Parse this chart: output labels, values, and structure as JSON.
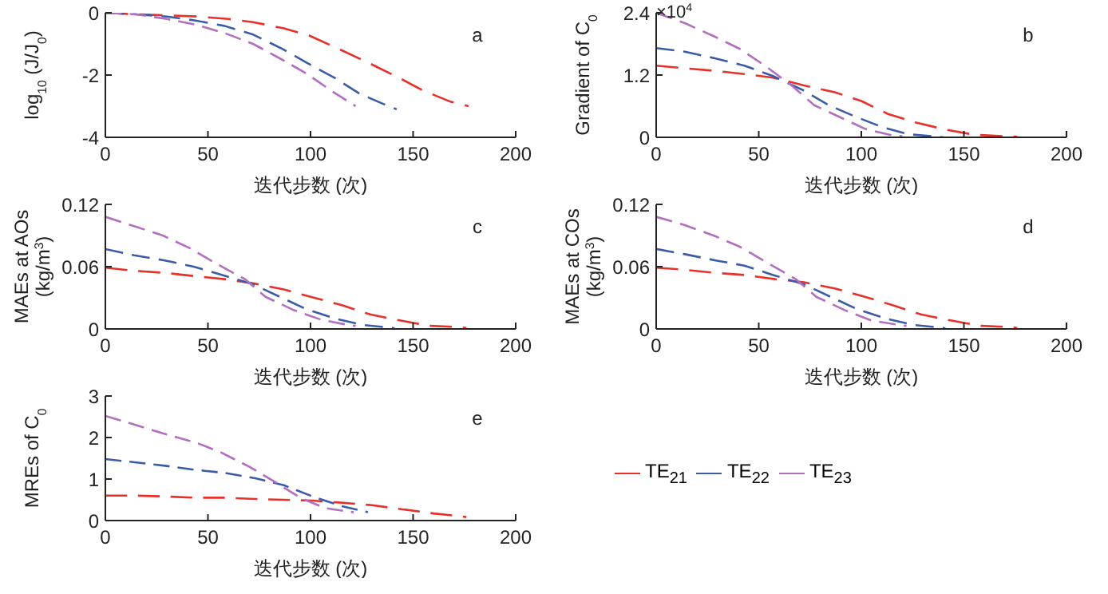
{
  "chart_data": [
    {
      "type": "line",
      "ylabel": "log$_{10}$ (J/J$_{0}$)",
      "xlabel": "迭代步数 (次)",
      "xlim": [
        0,
        200
      ],
      "xticks": [
        0,
        50,
        100,
        150,
        200
      ],
      "ylim": [
        -4,
        0
      ],
      "yticks": [
        -4,
        -2,
        0
      ],
      "line_style": "dashed",
      "legend": false,
      "annotations": [
        "a"
      ],
      "series": [
        {
          "color": "#e8302a",
          "x": [
            0,
            15,
            30,
            45,
            60,
            72,
            87,
            100,
            115,
            128,
            142,
            155,
            168,
            177
          ],
          "values": [
            0,
            -0.05,
            -0.08,
            -0.12,
            -0.2,
            -0.3,
            -0.5,
            -0.75,
            -1.2,
            -1.6,
            -2.05,
            -2.5,
            -2.85,
            -3.0
          ]
        },
        {
          "color": "#3a5ca8",
          "x": [
            0,
            15,
            30,
            44,
            58,
            72,
            86,
            98,
            112,
            124,
            138,
            142
          ],
          "values": [
            0,
            -0.05,
            -0.12,
            -0.25,
            -0.42,
            -0.7,
            -1.15,
            -1.6,
            -2.1,
            -2.6,
            -3.0,
            -3.1
          ]
        },
        {
          "color": "#b26fbf",
          "x": [
            0,
            15,
            30,
            44,
            58,
            72,
            86,
            98,
            110,
            122
          ],
          "values": [
            0,
            -0.05,
            -0.2,
            -0.38,
            -0.65,
            -1.0,
            -1.5,
            -1.95,
            -2.5,
            -3.0
          ]
        }
      ]
    },
    {
      "type": "line",
      "ylabel": "Gradient of C$_{0}$",
      "xlabel": "迭代步数 (次)",
      "xlim": [
        0,
        200
      ],
      "xticks": [
        0,
        50,
        100,
        150,
        200
      ],
      "ylim": [
        0,
        2.4
      ],
      "yticks": [
        0,
        1.2,
        2.4
      ],
      "line_style": "dashed",
      "legend": false,
      "annotations": [
        "×10$^{4}$",
        "b"
      ],
      "series": [
        {
          "color": "#e8302a",
          "x": [
            0,
            14,
            29,
            43,
            57,
            72,
            87,
            100,
            113,
            127,
            141,
            155,
            170,
            176
          ],
          "values": [
            1.38,
            1.33,
            1.28,
            1.22,
            1.15,
            1.0,
            0.87,
            0.7,
            0.45,
            0.28,
            0.15,
            0.05,
            0.02,
            0.01
          ]
        },
        {
          "color": "#3a5ca8",
          "x": [
            0,
            14,
            29,
            43,
            57,
            71,
            84,
            97,
            110,
            123,
            138,
            140
          ],
          "values": [
            1.72,
            1.65,
            1.52,
            1.38,
            1.18,
            0.92,
            0.62,
            0.4,
            0.2,
            0.06,
            0.01,
            0
          ]
        },
        {
          "color": "#b26fbf",
          "x": [
            0,
            14,
            28,
            41,
            53,
            66,
            77,
            90,
            102,
            115,
            120
          ],
          "values": [
            2.4,
            2.2,
            1.95,
            1.7,
            1.38,
            1.0,
            0.62,
            0.38,
            0.16,
            0.04,
            0.02
          ]
        }
      ]
    },
    {
      "type": "line",
      "ylabel": "MAEs at AOs\n(kg/m$^{3}$)",
      "xlabel": "迭代步数 (次)",
      "xlim": [
        0,
        200
      ],
      "xticks": [
        0,
        50,
        100,
        150,
        200
      ],
      "ylim": [
        0,
        0.12
      ],
      "yticks": [
        0,
        0.06,
        0.12
      ],
      "line_style": "dashed",
      "legend": false,
      "annotations": [
        "c"
      ],
      "series": [
        {
          "color": "#e8302a",
          "x": [
            0,
            14,
            29,
            43,
            58,
            72,
            87,
            100,
            115,
            129,
            144,
            158,
            171,
            176
          ],
          "values": [
            0.059,
            0.056,
            0.054,
            0.051,
            0.048,
            0.044,
            0.038,
            0.031,
            0.023,
            0.014,
            0.008,
            0.003,
            0.002,
            0.001
          ]
        },
        {
          "color": "#3a5ca8",
          "x": [
            0,
            14,
            29,
            43,
            57,
            72,
            85,
            98,
            112,
            125,
            140,
            141
          ],
          "values": [
            0.077,
            0.071,
            0.066,
            0.06,
            0.052,
            0.043,
            0.031,
            0.019,
            0.01,
            0.004,
            0.001,
            0
          ]
        },
        {
          "color": "#b26fbf",
          "x": [
            0,
            14,
            28,
            41,
            54,
            68,
            78,
            92,
            105,
            118,
            122
          ],
          "values": [
            0.108,
            0.099,
            0.09,
            0.078,
            0.063,
            0.048,
            0.031,
            0.018,
            0.009,
            0.004,
            0.003
          ]
        }
      ]
    },
    {
      "type": "line",
      "ylabel": "MAEs at COs\n(kg/m$^{3}$)",
      "xlabel": "迭代步数 (次)",
      "xlim": [
        0,
        200
      ],
      "xticks": [
        0,
        50,
        100,
        150,
        200
      ],
      "ylim": [
        0,
        0.12
      ],
      "yticks": [
        0,
        0.06,
        0.12
      ],
      "line_style": "dashed",
      "legend": false,
      "annotations": [
        "d"
      ],
      "series": [
        {
          "color": "#e8302a",
          "x": [
            0,
            14,
            29,
            43,
            58,
            72,
            87,
            100,
            115,
            129,
            144,
            158,
            171,
            176
          ],
          "values": [
            0.059,
            0.057,
            0.054,
            0.052,
            0.048,
            0.045,
            0.039,
            0.032,
            0.023,
            0.014,
            0.008,
            0.003,
            0.002,
            0.001
          ]
        },
        {
          "color": "#3a5ca8",
          "x": [
            0,
            14,
            29,
            43,
            57,
            72,
            85,
            98,
            112,
            125,
            140,
            141
          ],
          "values": [
            0.077,
            0.072,
            0.066,
            0.061,
            0.052,
            0.043,
            0.031,
            0.019,
            0.01,
            0.004,
            0.001,
            0
          ]
        },
        {
          "color": "#b26fbf",
          "x": [
            0,
            14,
            28,
            41,
            54,
            68,
            78,
            92,
            105,
            118,
            122
          ],
          "values": [
            0.108,
            0.1,
            0.09,
            0.079,
            0.064,
            0.048,
            0.031,
            0.018,
            0.008,
            0.004,
            0.003
          ]
        }
      ]
    },
    {
      "type": "line",
      "ylabel": "MREs of C$_{0}$",
      "xlabel": "迭代步数 (次)",
      "xlim": [
        0,
        200
      ],
      "xticks": [
        0,
        50,
        100,
        150,
        200
      ],
      "ylim": [
        0,
        3
      ],
      "yticks": [
        0,
        1,
        2,
        3
      ],
      "line_style": "dashed",
      "legend": "right",
      "annotations": [
        "e"
      ],
      "series": [
        {
          "name": "TE$_{21}$",
          "color": "#e8302a",
          "x": [
            0,
            15,
            29,
            44,
            58,
            73,
            87,
            101,
            115,
            130,
            145,
            160,
            174,
            176
          ],
          "values": [
            0.6,
            0.6,
            0.58,
            0.55,
            0.55,
            0.52,
            0.5,
            0.48,
            0.43,
            0.37,
            0.27,
            0.17,
            0.1,
            0.08
          ]
        },
        {
          "name": "TE$_{22}$",
          "color": "#3a5ca8",
          "x": [
            0,
            15,
            29,
            44,
            58,
            73,
            87,
            101,
            115,
            128
          ],
          "values": [
            1.48,
            1.4,
            1.32,
            1.22,
            1.15,
            1.02,
            0.85,
            0.58,
            0.35,
            0.2
          ]
        },
        {
          "name": "TE$_{23}$",
          "color": "#b26fbf",
          "x": [
            0,
            15,
            28,
            44,
            56,
            70,
            82,
            95,
            107,
            121
          ],
          "values": [
            2.52,
            2.3,
            2.1,
            1.88,
            1.65,
            1.3,
            0.95,
            0.55,
            0.3,
            0.2
          ]
        }
      ]
    }
  ]
}
